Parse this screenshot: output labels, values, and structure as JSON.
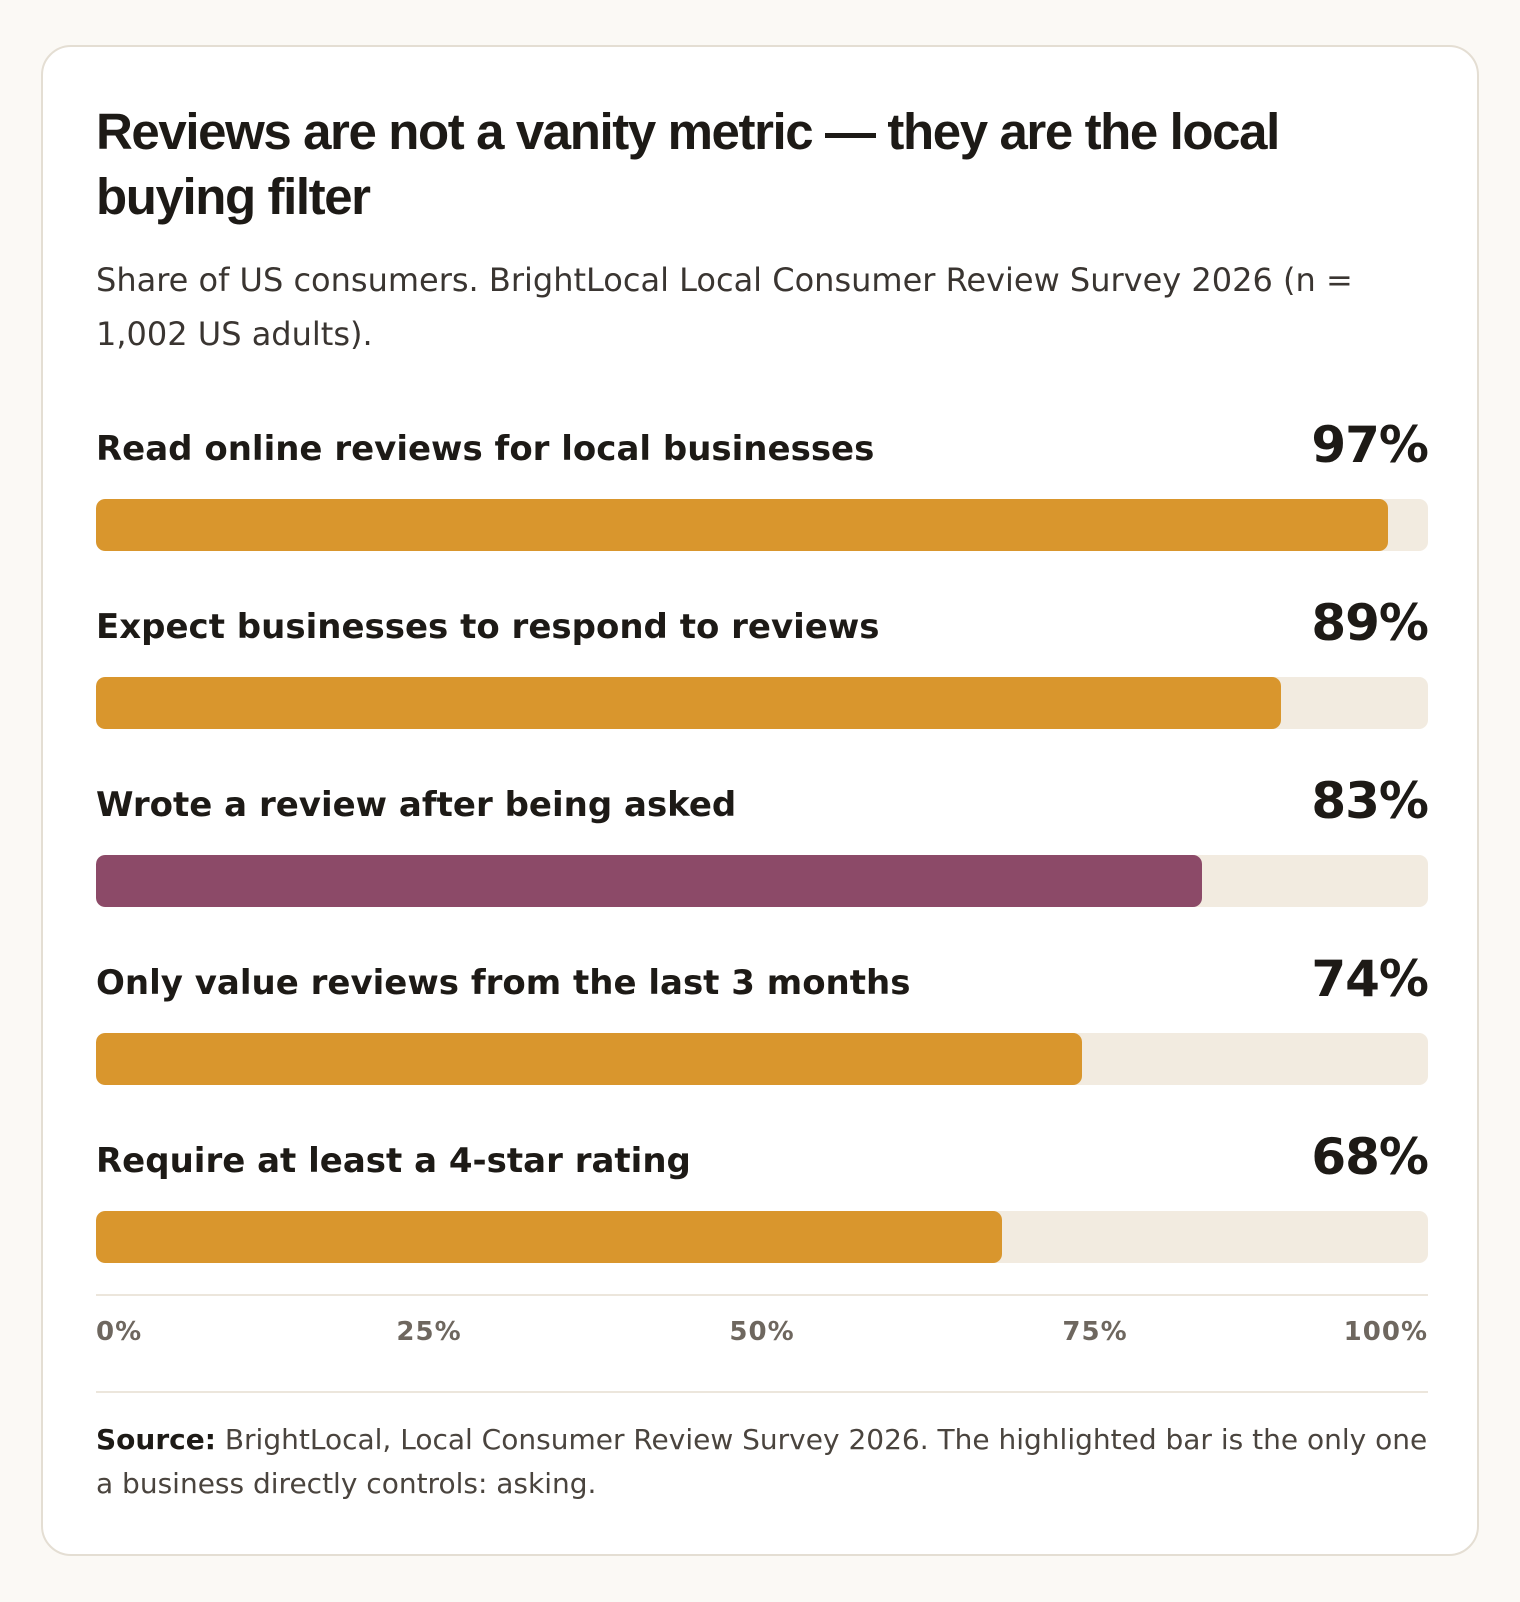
{
  "title": "Reviews are not a vanity metric — they are the local buying filter",
  "subtitle": "Share of US consumers. BrightLocal Local Consumer Review Survey 2026 (n = 1,002 US adults).",
  "colors": {
    "bar": "#d9962d",
    "highlight": "#8c4a68",
    "track": "#f2ebe0"
  },
  "chart_data": {
    "type": "bar",
    "orientation": "horizontal",
    "categories": [
      "Read online reviews for local businesses",
      "Expect businesses to respond to reviews",
      "Wrote a review after being asked",
      "Only value reviews from the last 3 months",
      "Require at least a 4-star rating"
    ],
    "values": [
      97,
      89,
      83,
      74,
      68
    ],
    "value_labels": [
      "97%",
      "89%",
      "83%",
      "74%",
      "68%"
    ],
    "highlighted": [
      false,
      false,
      true,
      false,
      false
    ],
    "xlim": [
      0,
      100
    ],
    "xticks": [
      "0%",
      "25%",
      "50%",
      "75%",
      "100%"
    ],
    "grid": false,
    "legend": "none"
  },
  "source": {
    "label": "Source:",
    "text": " BrightLocal, Local Consumer Review Survey 2026. The highlighted bar is the only one a business directly controls: asking."
  }
}
